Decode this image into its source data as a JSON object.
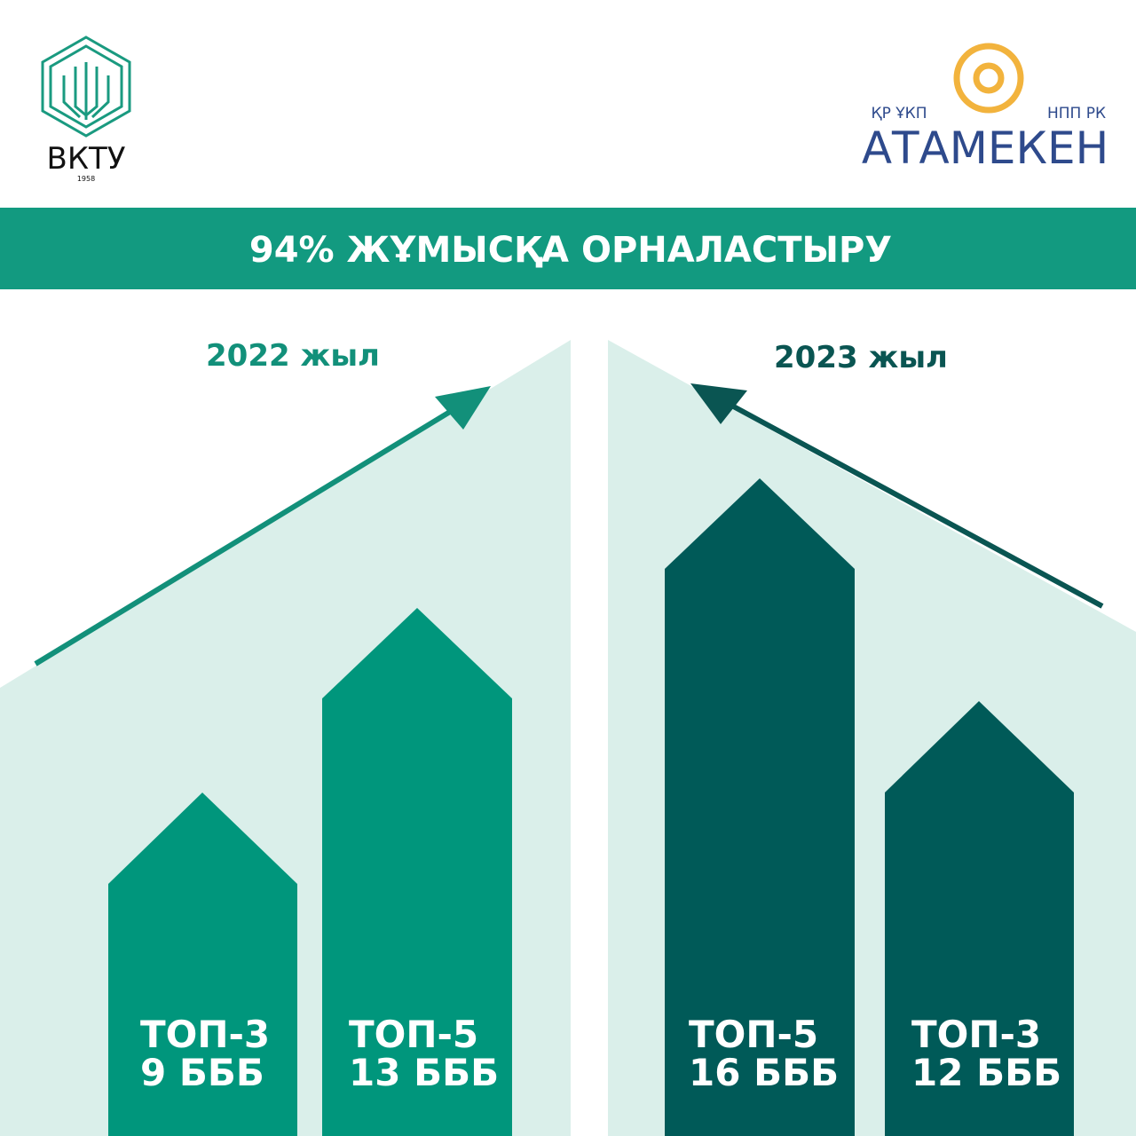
{
  "logos": {
    "left": {
      "name": "ВКТУ",
      "year": "1958"
    },
    "right": {
      "left_caption": "ҚР ҰКП",
      "right_caption": "НПП РК",
      "name": "АТАМЕКЕН"
    }
  },
  "header": {
    "title": "94% ЖҰМЫСҚА ОРНАЛАСТЫРУ"
  },
  "panels": [
    {
      "year": "2022 жыл",
      "bars": [
        {
          "label": "ТОП-3",
          "value": "9 БББ"
        },
        {
          "label": "ТОП-5",
          "value": "13 БББ"
        }
      ]
    },
    {
      "year": "2023 жыл",
      "bars": [
        {
          "label": "ТОП-5",
          "value": "16 БББ"
        },
        {
          "label": "ТОП-3",
          "value": "12 БББ"
        }
      ]
    }
  ]
}
